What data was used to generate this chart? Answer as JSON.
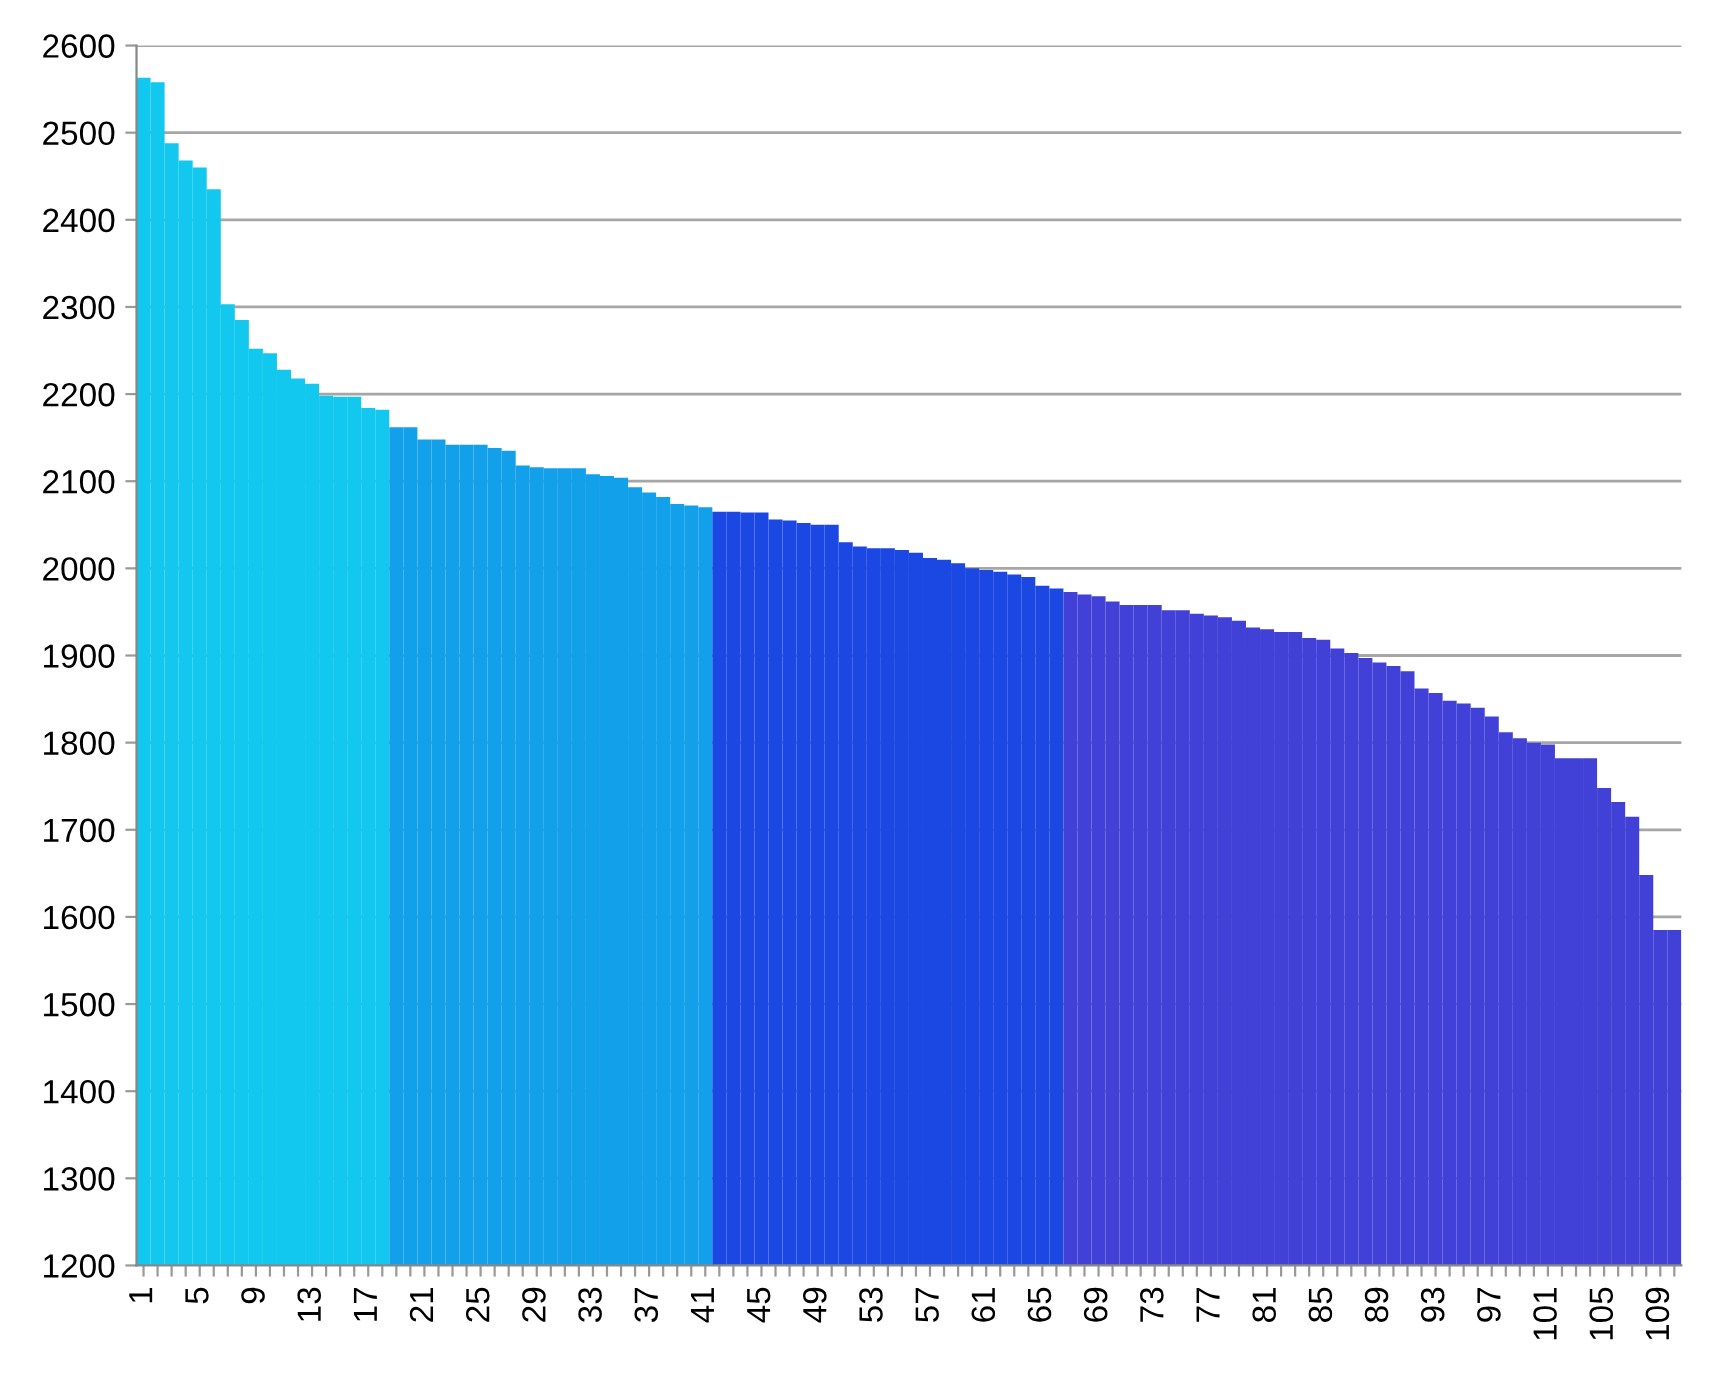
{
  "chart_data": {
    "type": "bar",
    "categories": [
      "1",
      null,
      null,
      null,
      "5",
      null,
      null,
      null,
      "9",
      null,
      null,
      null,
      "13",
      null,
      null,
      null,
      "17",
      null,
      null,
      null,
      "21",
      null,
      null,
      null,
      "25",
      null,
      null,
      null,
      "29",
      null,
      null,
      null,
      "33",
      null,
      null,
      null,
      "37",
      null,
      null,
      null,
      "41",
      null,
      null,
      null,
      "45",
      null,
      null,
      null,
      "49",
      null,
      null,
      null,
      "53",
      null,
      null,
      null,
      "57",
      null,
      null,
      null,
      "61",
      null,
      null,
      null,
      "65",
      null,
      null,
      null,
      "69",
      null,
      null,
      null,
      "73",
      null,
      null,
      null,
      "77",
      null,
      null,
      null,
      "81",
      null,
      null,
      null,
      "85",
      null,
      null,
      null,
      "89",
      null,
      null,
      null,
      "93",
      null,
      null,
      null,
      "97",
      null,
      null,
      null,
      "101",
      null,
      null,
      null,
      "105",
      null,
      null,
      null,
      "109",
      null
    ],
    "values": [
      2563,
      2558,
      2488,
      2468,
      2460,
      2435,
      2303,
      2285,
      2252,
      2247,
      2228,
      2218,
      2212,
      2198,
      2197,
      2197,
      2184,
      2182,
      2162,
      2162,
      2148,
      2148,
      2142,
      2142,
      2142,
      2138,
      2135,
      2118,
      2116,
      2115,
      2115,
      2115,
      2108,
      2106,
      2104,
      2093,
      2087,
      2082,
      2074,
      2072,
      2070,
      2065,
      2065,
      2064,
      2064,
      2056,
      2055,
      2052,
      2050,
      2050,
      2030,
      2025,
      2023,
      2023,
      2021,
      2018,
      2012,
      2010,
      2006,
      2000,
      1998,
      1996,
      1993,
      1990,
      1980,
      1977,
      1973,
      1970,
      1968,
      1962,
      1958,
      1958,
      1958,
      1952,
      1952,
      1948,
      1946,
      1944,
      1940,
      1932,
      1930,
      1927,
      1927,
      1920,
      1918,
      1908,
      1903,
      1897,
      1892,
      1888,
      1882,
      1862,
      1857,
      1848,
      1845,
      1840,
      1830,
      1812,
      1805,
      1800,
      1798,
      1782,
      1782,
      1782,
      1748,
      1732,
      1715,
      1648,
      1585,
      1585
    ],
    "colors": [
      "#12c8ee",
      "#12c8ee",
      "#12c8ee",
      "#12c8ee",
      "#12c8ee",
      "#12c8ee",
      "#12c8ee",
      "#12c8ee",
      "#12c8ee",
      "#12c8ee",
      "#12c8ee",
      "#12c8ee",
      "#12c8ee",
      "#12c8ee",
      "#12c8ee",
      "#12c8ee",
      "#12c8ee",
      "#12c8ee",
      "#12a0ea",
      "#12a0ea",
      "#12a0ea",
      "#12a0ea",
      "#12a0ea",
      "#12a0ea",
      "#12a0ea",
      "#12a0ea",
      "#12a0ea",
      "#12a0ea",
      "#12a0ea",
      "#12a0ea",
      "#12a0ea",
      "#12a0ea",
      "#12a0ea",
      "#12a0ea",
      "#12a0ea",
      "#12a0ea",
      "#12a0ea",
      "#12a0ea",
      "#12a0ea",
      "#12a0ea",
      "#12a0ea",
      "#1b47e3",
      "#1b47e3",
      "#1b47e3",
      "#1b47e3",
      "#1b47e3",
      "#1b47e3",
      "#1b47e3",
      "#1b47e3",
      "#1b47e3",
      "#1b47e3",
      "#1b47e3",
      "#1b47e3",
      "#1b47e3",
      "#1b47e3",
      "#1b47e3",
      "#1b47e3",
      "#1b47e3",
      "#1b47e3",
      "#1b47e3",
      "#1b47e3",
      "#1b47e3",
      "#1b47e3",
      "#1b47e3",
      "#1b47e3",
      "#1b47e3",
      "#4141d8",
      "#4141d8",
      "#4141d8",
      "#4141d8",
      "#4141d8",
      "#4141d8",
      "#4141d8",
      "#4141d8",
      "#4141d8",
      "#4141d8",
      "#4141d8",
      "#4141d8",
      "#4141d8",
      "#4141d8",
      "#4141d8",
      "#4141d8",
      "#4141d8",
      "#4141d8",
      "#4141d8",
      "#4141d8",
      "#4141d8",
      "#4141d8",
      "#4141d8",
      "#4141d8",
      "#4141d8",
      "#4141d8",
      "#4141d8",
      "#4141d8",
      "#4141d8",
      "#4141d8",
      "#4141d8",
      "#4141d8",
      "#4141d8",
      "#4141d8",
      "#4141d8",
      "#4141d8",
      "#4141d8",
      "#4141d8",
      "#4141d8",
      "#4141d8",
      "#4141d8",
      "#4141d8",
      "#4141d8",
      "#4141d8"
    ],
    "ylim": [
      1200,
      2600
    ],
    "yticks": [
      1200,
      1300,
      1400,
      1500,
      1600,
      1700,
      1800,
      1900,
      2000,
      2100,
      2200,
      2300,
      2400,
      2500,
      2600
    ],
    "grid": "y"
  }
}
